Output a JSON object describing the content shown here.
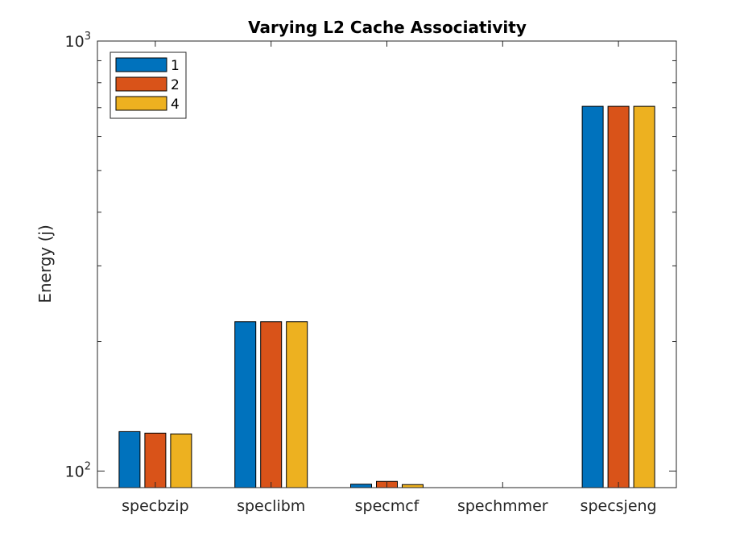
{
  "chart_data": {
    "type": "bar",
    "title": "Varying L2 Cache Associativity",
    "xlabel": "",
    "ylabel": "Energy (j)",
    "y_scale": "log",
    "ylim": [
      91.5,
      1000
    ],
    "y_ticks": [
      {
        "value": 100,
        "base": "10",
        "exponent": "2"
      },
      {
        "value": 1000,
        "base": "10",
        "exponent": "3"
      }
    ],
    "categories": [
      "specbzip",
      "speclibm",
      "specmcf",
      "spechmmer",
      "specsjeng"
    ],
    "series": [
      {
        "name": "1",
        "color": "#0072BD",
        "values": [
          123.5,
          222.5,
          93.2,
          null,
          705
        ]
      },
      {
        "name": "2",
        "color": "#D95319",
        "values": [
          122.5,
          222.5,
          94.6,
          null,
          705
        ]
      },
      {
        "name": "4",
        "color": "#EDB120",
        "values": [
          122.0,
          222.5,
          93.0,
          null,
          705
        ]
      }
    ],
    "grid": false,
    "legend_position": "top-left",
    "axis_color": "#262626"
  }
}
